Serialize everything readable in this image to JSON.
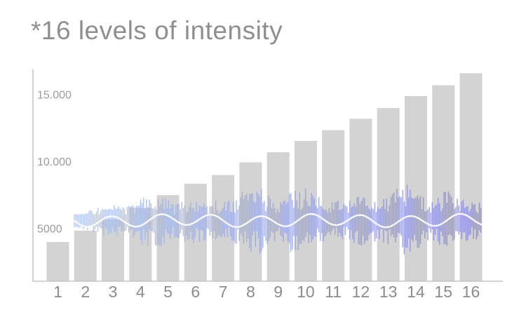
{
  "title": "*16 levels of intensity",
  "chart_data": {
    "type": "bar",
    "title": "*16 levels of intensity",
    "categories": [
      "1",
      "2",
      "3",
      "4",
      "5",
      "6",
      "7",
      "8",
      "9",
      "10",
      "11",
      "12",
      "13",
      "14",
      "15",
      "16"
    ],
    "values": [
      4000,
      4850,
      5700,
      6550,
      7500,
      8350,
      9000,
      9950,
      10700,
      11550,
      12350,
      13200,
      14000,
      14900,
      15700,
      16600
    ],
    "xlabel": "",
    "ylabel": "",
    "y_ticks": [
      5000,
      10000,
      15000
    ],
    "y_tick_labels": [
      "5000",
      "10.000",
      "15.000"
    ],
    "ylim": [
      1300,
      17200
    ],
    "grid": false,
    "legend": false,
    "bar_color": "#d3d3d3",
    "axis_color": "#c5c5c5",
    "label_color": "#9b9b9b",
    "overlay_waveform": {
      "description": "audio-style amplitude waveform spanning bars 2 through 16",
      "center_value": 5600,
      "color_left": "#a7c0e8",
      "color_right": "#8583da",
      "midline_curve_color": "#ffffff"
    }
  }
}
